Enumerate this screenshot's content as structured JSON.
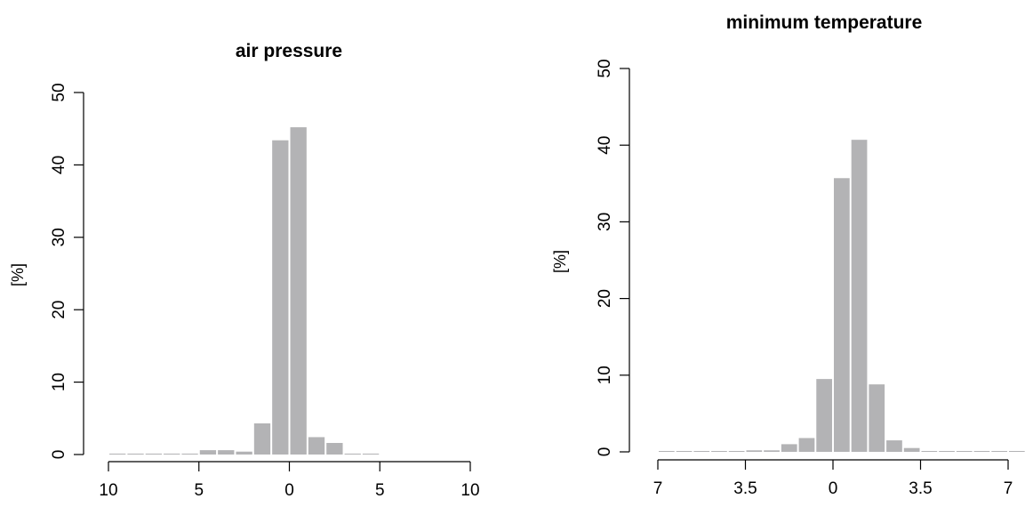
{
  "chart_data": [
    {
      "type": "bar",
      "title": "air pressure",
      "xlabel": "",
      "ylabel": "[%]",
      "ylim": [
        0,
        50
      ],
      "yticks": [
        0,
        10,
        20,
        30,
        40,
        50
      ],
      "xlim": [
        -10,
        10
      ],
      "xtick_positions": [
        -10,
        -5,
        0,
        5,
        10
      ],
      "xtick_labels": [
        "10",
        "5",
        "0",
        "5",
        "10"
      ],
      "bar_edges": [
        -10,
        -9,
        -8,
        -7,
        -6,
        -5,
        -4,
        -3,
        -2,
        -1,
        0,
        1,
        2,
        3,
        4,
        5
      ],
      "values": [
        0.1,
        0.1,
        0,
        0,
        0.1,
        0.6,
        0.6,
        0.4,
        4.3,
        43.4,
        45.2,
        2.4,
        1.6,
        0.1,
        0.1
      ],
      "bar_color": "#b3b3b5",
      "grid": false
    },
    {
      "type": "bar",
      "title": "minimum temperature",
      "xlabel": "",
      "ylabel": "[%]",
      "ylim": [
        0,
        50
      ],
      "yticks": [
        0,
        10,
        20,
        30,
        40,
        50
      ],
      "xlim": [
        -7,
        7
      ],
      "xtick_positions": [
        -7,
        -3.5,
        0,
        3.5,
        7
      ],
      "xtick_labels": [
        "7",
        "3.5",
        "0",
        "3.5",
        "7"
      ],
      "bar_edges": [
        -7,
        -6.3,
        -5.6,
        -4.9,
        -4.2,
        -3.5,
        -2.8,
        -2.1,
        -1.4,
        -0.7,
        0,
        0.7,
        1.4,
        2.1,
        2.8,
        3.5,
        4.2,
        4.9,
        5.6,
        6.3,
        7,
        7.7
      ],
      "values": [
        0.05,
        0.05,
        0.05,
        0.05,
        0.05,
        0.2,
        0.2,
        1.0,
        1.8,
        9.5,
        35.7,
        40.7,
        8.8,
        1.5,
        0.5,
        0.05,
        0.05,
        0.05,
        0.05,
        0.05,
        0.05
      ],
      "bar_color": "#b3b3b5",
      "grid": false
    }
  ]
}
